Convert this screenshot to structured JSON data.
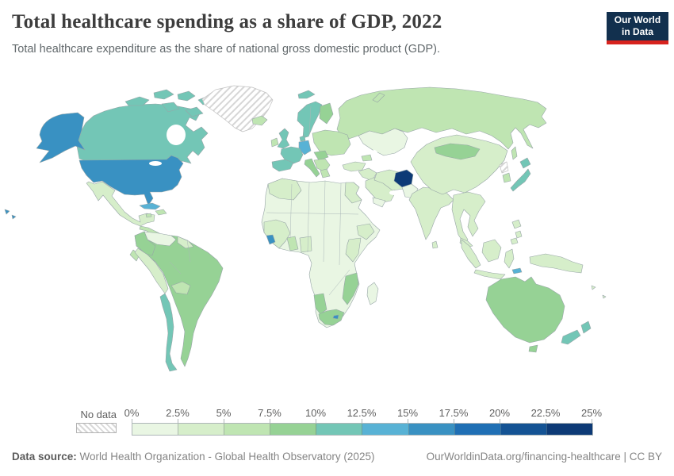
{
  "header": {
    "title": "Total healthcare spending as a share of GDP, 2022",
    "subtitle": "Total healthcare expenditure as the share of national gross domestic product (GDP).",
    "logo": {
      "line1": "Our World",
      "line2": "in Data",
      "bg_color": "#12304e",
      "accent_color": "#d7231e"
    }
  },
  "legend": {
    "no_data_label": "No data",
    "tick_labels": [
      "0%",
      "2.5%",
      "5%",
      "7.5%",
      "10%",
      "12.5%",
      "15%",
      "17.5%",
      "20%",
      "22.5%",
      "25%"
    ],
    "bin_colors": [
      "#e9f6e3",
      "#d6eeca",
      "#bfe5b2",
      "#96d295",
      "#73c6b6",
      "#58b2d5",
      "#3991c2",
      "#1f6fb4",
      "#145394",
      "#0d3a76"
    ]
  },
  "footer": {
    "source_label": "Data source:",
    "source_text": " World Health Organization - Global Health Observatory (2025)",
    "link_text": "OurWorldinData.org/financing-healthcare | CC BY"
  },
  "chart_data": {
    "type": "choropleth_map",
    "title": "Total healthcare spending as a share of GDP, 2022",
    "scale_range": [
      "0%",
      "25%"
    ],
    "scale_step": "2.5%",
    "legend_position": "bottom",
    "no_data_style": "hatched"
  },
  "map": {
    "ocean_color": "#ffffff",
    "border_color": "#97a5a7",
    "regions": {
      "alaska": {
        "label": "United States (Alaska)",
        "color": "#3991c2"
      },
      "usa": {
        "label": "United States",
        "color": "#3991c2"
      },
      "hawaii": {
        "label": "United States (Hawaii)",
        "color": "#3991c2"
      },
      "canada": {
        "label": "Canada",
        "color": "#73c6b6"
      },
      "canadian_arctic": {
        "label": "Canada (Arctic islands)",
        "color": "#73c6b6"
      },
      "greenland": {
        "label": "Greenland",
        "color": "url(#hatch)"
      },
      "iceland": {
        "label": "Iceland",
        "color": "#bfe5b2"
      },
      "svalbard": {
        "label": "Svalbard",
        "color": "#73c6b6"
      },
      "mexico": {
        "label": "Mexico",
        "color": "#d6eeca"
      },
      "central_america": {
        "label": "Central America",
        "color": "#bfe5b2"
      },
      "cuba": {
        "label": "Cuba",
        "color": "#58b2d5"
      },
      "jamaica": {
        "label": "Jamaica",
        "color": "#bfe5b2"
      },
      "hispaniola": {
        "label": "Haiti / Dominican Republic",
        "color": "#bfe5b2"
      },
      "venezuela": {
        "label": "Venezuela",
        "color": "#e9f6e3"
      },
      "guyanas": {
        "label": "Guyana / Suriname",
        "color": "#d6eeca"
      },
      "colombia": {
        "label": "Colombia",
        "color": "#96d295"
      },
      "ecuador": {
        "label": "Ecuador",
        "color": "#bfe5b2"
      },
      "peru": {
        "label": "Peru",
        "color": "#d6eeca"
      },
      "south_america_main": {
        "label": "Brazil / Argentina",
        "color": "#96d295"
      },
      "bolivia": {
        "label": "Bolivia",
        "color": "#bfe5b2"
      },
      "chile": {
        "label": "Chile",
        "color": "#73c6b6"
      },
      "uk": {
        "label": "United Kingdom",
        "color": "#73c6b6"
      },
      "ireland": {
        "label": "Ireland",
        "color": "#bfe5b2"
      },
      "france": {
        "label": "France",
        "color": "#73c6b6"
      },
      "germany": {
        "label": "Germany",
        "color": "#58b2d5"
      },
      "iberia": {
        "label": "Spain / Portugal",
        "color": "#73c6b6"
      },
      "italy": {
        "label": "Italy",
        "color": "#96d295"
      },
      "scandinavia": {
        "label": "Norway / Sweden",
        "color": "#73c6b6"
      },
      "finland": {
        "label": "Finland",
        "color": "#96d295"
      },
      "denmark": {
        "label": "Denmark",
        "color": "#73c6b6"
      },
      "eastern_europe": {
        "label": "Poland / Baltics / Ukraine",
        "color": "#bfe5b2"
      },
      "central_europe": {
        "label": "Czechia / Hungary",
        "color": "#96d295"
      },
      "balkans": {
        "label": "Balkans",
        "color": "#bfe5b2"
      },
      "greece": {
        "label": "Greece",
        "color": "#bfe5b2"
      },
      "russia": {
        "label": "Russia",
        "color": "#bfe5b2"
      },
      "novaya_zemlya": {
        "label": "Russia (Novaya Zemlya)",
        "color": "#bfe5b2"
      },
      "sakhalin": {
        "label": "Russia (Sakhalin)",
        "color": "#bfe5b2"
      },
      "central_asia": {
        "label": "Kazakhstan / Central Asia",
        "color": "#e9f6e3"
      },
      "turkey": {
        "label": "Turkey",
        "color": "#d6eeca"
      },
      "caucasus": {
        "label": "Caucasus",
        "color": "#bfe5b2"
      },
      "middle_east": {
        "label": "Levant / Iraq",
        "color": "#d6eeca"
      },
      "saudi_arabia": {
        "label": "Saudi Arabia",
        "color": "#d6eeca"
      },
      "yemen": {
        "label": "Yemen / Oman",
        "color": "#e9f6e3"
      },
      "iran": {
        "label": "Iran",
        "color": "#d6eeca"
      },
      "afghanistan": {
        "label": "Afghanistan",
        "color": "#0d3a76"
      },
      "pakistan": {
        "label": "Pakistan",
        "color": "#e9f6e3"
      },
      "india": {
        "label": "India",
        "color": "#d6eeca"
      },
      "sri_lanka": {
        "label": "Sri Lanka",
        "color": "#d6eeca"
      },
      "china": {
        "label": "China",
        "color": "#d6eeca"
      },
      "mongolia": {
        "label": "Mongolia",
        "color": "#96d295"
      },
      "north_korea": {
        "label": "North Korea",
        "color": "url(#hatch)"
      },
      "south_korea": {
        "label": "South Korea",
        "color": "#bfe5b2"
      },
      "japan": {
        "label": "Japan",
        "color": "#73c6b6"
      },
      "indochina": {
        "label": "Myanmar / Thailand / Vietnam",
        "color": "#d6eeca"
      },
      "malaysia": {
        "label": "Malaysia",
        "color": "#d6eeca"
      },
      "philippines": {
        "label": "Philippines",
        "color": "#d6eeca"
      },
      "sumatra": {
        "label": "Indonesia (Sumatra)",
        "color": "#d6eeca"
      },
      "borneo": {
        "label": "Indonesia (Borneo)",
        "color": "#d6eeca"
      },
      "sulawesi": {
        "label": "Indonesia (Sulawesi)",
        "color": "#d6eeca"
      },
      "java": {
        "label": "Indonesia (Java)",
        "color": "#d6eeca"
      },
      "timor": {
        "label": "Timor-Leste",
        "color": "#58b2d5"
      },
      "png": {
        "label": "Papua New Guinea",
        "color": "#d6eeca"
      },
      "australia": {
        "label": "Australia",
        "color": "#96d295"
      },
      "tasmania": {
        "label": "Australia (Tasmania)",
        "color": "#96d295"
      },
      "nz_north": {
        "label": "New Zealand (North Island)",
        "color": "#73c6b6"
      },
      "nz_south": {
        "label": "New Zealand (South Island)",
        "color": "#73c6b6"
      },
      "fiji": {
        "label": "Pacific islands",
        "color": "#d6eeca"
      },
      "africa": {
        "label": "Africa (Sahara / Central)",
        "color": "#e9f6e3"
      },
      "maghreb": {
        "label": "Morocco / Algeria",
        "color": "#d6eeca"
      },
      "egypt": {
        "label": "Egypt",
        "color": "#d6eeca"
      },
      "west_africa": {
        "label": "Senegal / Guinea",
        "color": "#d6eeca"
      },
      "sierra_leone": {
        "label": "Sierra Leone",
        "color": "#3991c2"
      },
      "ghana": {
        "label": "Ghana / Burkina Faso",
        "color": "#bfe5b2"
      },
      "nigeria": {
        "label": "Nigeria",
        "color": "#d6eeca"
      },
      "ethiopia": {
        "label": "Ethiopia",
        "color": "#d6eeca"
      },
      "east_africa": {
        "label": "Kenya / Tanzania",
        "color": "#d6eeca"
      },
      "mozambique": {
        "label": "Mozambique / Zimbabwe",
        "color": "#96d295"
      },
      "namibia": {
        "label": "Namibia",
        "color": "#96d295"
      },
      "south_africa": {
        "label": "South Africa",
        "color": "#96d295"
      },
      "lesotho": {
        "label": "Lesotho",
        "color": "#3991c2"
      },
      "madagascar": {
        "label": "Madagascar",
        "color": "#e9f6e3"
      }
    }
  }
}
